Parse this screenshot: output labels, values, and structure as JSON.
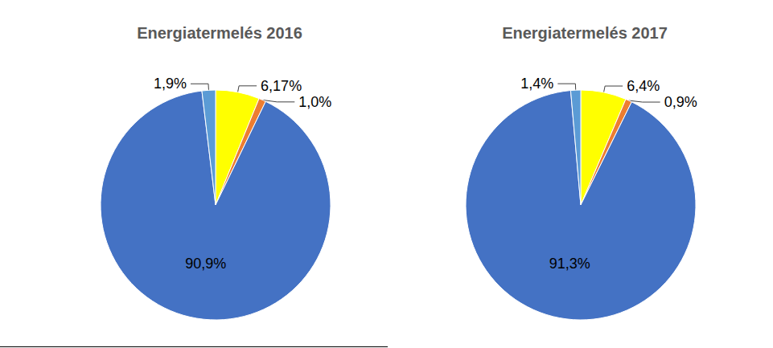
{
  "chart_data": [
    {
      "type": "pie",
      "title": "Energiatermelés 2016",
      "values": [
        6.17,
        1.0,
        90.9,
        1.9
      ],
      "value_labels": [
        "6,17%",
        "1,0%",
        "90,9%",
        "1,9%"
      ],
      "colors": [
        "#ffff00",
        "#ed7d31",
        "#4472c4",
        "#5b9bd5"
      ],
      "data_labels": true
    },
    {
      "type": "pie",
      "title": "Energiatermelés 2017",
      "values": [
        6.4,
        0.9,
        91.3,
        1.4
      ],
      "value_labels": [
        "6,4%",
        "0,9%",
        "91,3%",
        "1,4%"
      ],
      "colors": [
        "#ffff00",
        "#ed7d31",
        "#4472c4",
        "#5b9bd5"
      ],
      "data_labels": true
    }
  ]
}
